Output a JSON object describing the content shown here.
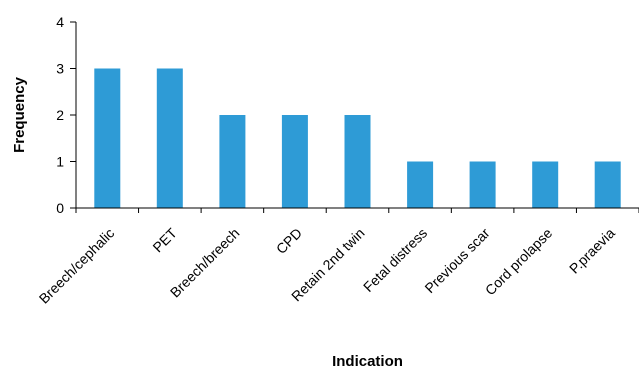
{
  "chart_data": {
    "type": "bar",
    "categories": [
      "Breech/cephalic",
      "PET",
      "Breech/breech",
      "CPD",
      "Retain 2nd twin",
      "Fetal distress",
      "Previous scar",
      "Cord prolapse",
      "P.praevia"
    ],
    "series": [
      {
        "values": [
          3,
          3,
          2,
          2,
          2,
          1,
          1,
          1,
          1
        ]
      }
    ],
    "xlabel": "Indication",
    "ylabel": "Frequency",
    "ylim": [
      0,
      4
    ],
    "yticks": [
      "0",
      "1",
      "2",
      "3",
      "4"
    ],
    "grid": false,
    "legend": "none",
    "bar_color": "#2E9BD6",
    "axis_color": "#000000"
  }
}
